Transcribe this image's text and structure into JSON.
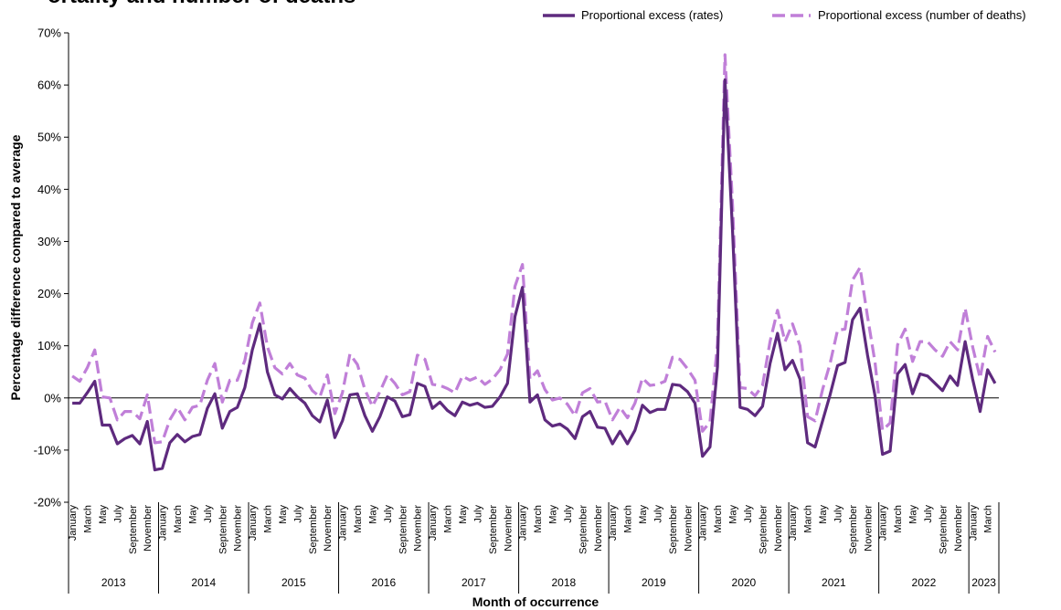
{
  "chart_data": {
    "type": "line",
    "title": "ortality and number of deaths",
    "xlabel": "Month of occurrence",
    "ylabel": "Percentage difference compared to average",
    "ylim": [
      -20,
      70
    ],
    "yticks": [
      "-20%",
      "-10%",
      "0%",
      "10%",
      "20%",
      "30%",
      "40%",
      "50%",
      "60%",
      "70%"
    ],
    "legend_position": "top-right",
    "month_labels": [
      "January",
      "March",
      "May",
      "July",
      "September",
      "November"
    ],
    "years": [
      {
        "label": "2013",
        "months": 12
      },
      {
        "label": "2014",
        "months": 12
      },
      {
        "label": "2015",
        "months": 12
      },
      {
        "label": "2016",
        "months": 12
      },
      {
        "label": "2017",
        "months": 12
      },
      {
        "label": "2018",
        "months": 12
      },
      {
        "label": "2019",
        "months": 12
      },
      {
        "label": "2020",
        "months": 12
      },
      {
        "label": "2021",
        "months": 12
      },
      {
        "label": "2022",
        "months": 12
      },
      {
        "label": "2023",
        "months": 4
      }
    ],
    "series": [
      {
        "name": "Proportional excess (rates)",
        "color": "#5e2a7e",
        "dash": "solid",
        "values": [
          -1.0,
          -1.0,
          1.0,
          3.2,
          -5.2,
          -5.2,
          -8.8,
          -7.8,
          -7.2,
          -8.8,
          -4.5,
          -13.8,
          -13.5,
          -8.6,
          -7.0,
          -8.4,
          -7.4,
          -7.0,
          -2.0,
          0.8,
          -5.8,
          -2.6,
          -1.8,
          2.0,
          9.2,
          14.2,
          5.0,
          0.6,
          -0.2,
          1.8,
          0.2,
          -1.0,
          -3.4,
          -4.6,
          -0.4,
          -7.6,
          -4.4,
          0.6,
          0.8,
          -3.4,
          -6.4,
          -3.6,
          0.2,
          -0.6,
          -3.6,
          -3.2,
          2.8,
          2.2,
          -2.0,
          -0.8,
          -2.4,
          -3.4,
          -0.8,
          -1.4,
          -1.0,
          -1.8,
          -1.6,
          0.2,
          2.8,
          15.6,
          21.2,
          -0.8,
          0.6,
          -4.2,
          -5.4,
          -5.0,
          -6.0,
          -7.8,
          -3.6,
          -2.6,
          -5.6,
          -5.8,
          -8.8,
          -6.4,
          -8.8,
          -6.2,
          -1.4,
          -2.8,
          -2.2,
          -2.2,
          2.6,
          2.4,
          1.2,
          -1.0,
          -11.2,
          -9.4,
          6.0,
          61.0,
          32.0,
          -1.8,
          -2.2,
          -3.4,
          -1.6,
          6.6,
          12.4,
          5.4,
          7.2,
          3.6,
          -8.6,
          -9.4,
          -4.4,
          0.6,
          6.2,
          6.8,
          15.0,
          17.2,
          8.2,
          0.4,
          -10.8,
          -10.2,
          4.6,
          6.4,
          0.8,
          4.6,
          4.2,
          2.8,
          1.4,
          4.2,
          2.4,
          10.8,
          3.6,
          -2.6,
          5.4,
          2.8
        ]
      },
      {
        "name": "Proportional excess (number of deaths)",
        "color": "#c07fd8",
        "dash": "dashed",
        "values": [
          4.2,
          3.2,
          5.8,
          9.2,
          0.2,
          0.0,
          -4.2,
          -2.6,
          -2.6,
          -4.0,
          0.6,
          -8.6,
          -8.4,
          -4.2,
          -1.8,
          -4.2,
          -1.8,
          -1.4,
          3.4,
          6.6,
          -0.8,
          3.4,
          3.4,
          7.2,
          14.4,
          18.2,
          9.8,
          5.8,
          4.6,
          6.6,
          4.4,
          3.8,
          1.4,
          0.2,
          4.4,
          -3.0,
          1.0,
          8.4,
          6.4,
          1.6,
          -1.6,
          1.2,
          4.4,
          2.8,
          0.6,
          1.2,
          8.2,
          7.4,
          2.6,
          2.4,
          1.8,
          1.0,
          4.2,
          3.4,
          4.0,
          2.6,
          3.6,
          5.4,
          8.4,
          21.4,
          25.6,
          3.6,
          5.2,
          1.6,
          -0.4,
          0.0,
          -1.2,
          -3.4,
          1.0,
          1.8,
          -0.8,
          -0.6,
          -4.2,
          -1.8,
          -3.8,
          -1.0,
          3.8,
          2.4,
          2.6,
          3.2,
          7.8,
          7.4,
          5.6,
          3.4,
          -6.4,
          -4.6,
          10.4,
          65.8,
          37.0,
          2.0,
          1.8,
          0.4,
          2.4,
          10.8,
          16.8,
          10.8,
          14.2,
          10.0,
          -3.6,
          -4.4,
          1.6,
          6.6,
          13.0,
          13.2,
          22.6,
          25.0,
          15.6,
          6.8,
          -6.2,
          -4.8,
          10.2,
          13.2,
          7.0,
          10.8,
          10.8,
          9.2,
          8.0,
          10.8,
          9.2,
          17.2,
          9.8,
          3.8,
          11.8,
          8.8
        ]
      }
    ]
  }
}
